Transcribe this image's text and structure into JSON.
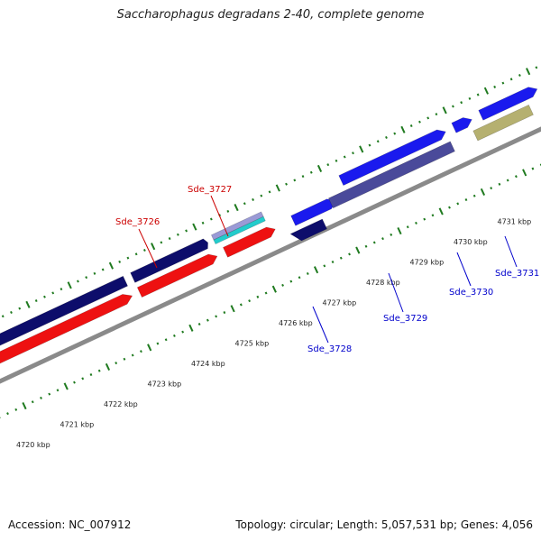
{
  "title": "Saccharophagus degradans 2-40, complete genome",
  "footer": {
    "accession": "Accession: NC_007912",
    "summary": "Topology: circular; Length: 5,057,531 bp; Genes: 4,056"
  },
  "colors": {
    "backbone": "#8a8a8a",
    "tick": "#1f7a1f",
    "forward_label": "#cc0000",
    "reverse_label": "#0000cc",
    "navy": "#0d0d6b",
    "red": "#ee1111",
    "blue": "#1a1aee",
    "slate": "#4a4a9a",
    "olive": "#b5b070",
    "green": "#33cc33",
    "lavender": "#9a9ad6",
    "cyan": "#22cccc"
  },
  "ruler": {
    "tick_labels": [
      "4720 kbp",
      "4721 kbp",
      "4722 kbp",
      "4723 kbp",
      "4724 kbp",
      "4725 kbp",
      "4726 kbp",
      "4727 kbp",
      "4728 kbp",
      "4729 kbp",
      "4730 kbp",
      "4731 kbp"
    ]
  },
  "gene_labels": {
    "forward": [
      "Sde_3726",
      "Sde_3727"
    ],
    "reverse": [
      "Sde_3728",
      "Sde_3729",
      "Sde_3730",
      "Sde_3731"
    ]
  }
}
